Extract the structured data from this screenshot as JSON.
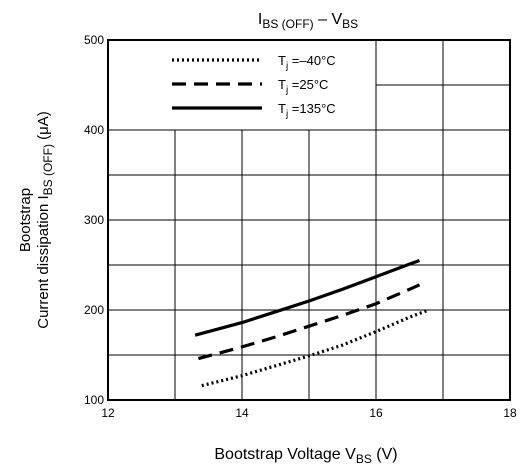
{
  "chart_data": {
    "type": "line",
    "title": {
      "main": "I",
      "sub": "BS (OFF)",
      "dash": " – ",
      "main2": "V",
      "sub2": "BS"
    },
    "xlabel": {
      "text": "Bootstrap Voltage",
      "sym": "V",
      "sub": "BS",
      "unit": "(V)"
    },
    "ylabel": {
      "line1": "Bootstrap",
      "line2_text": "Current dissipation",
      "line2_sym": "I",
      "line2_sub": "BS (OFF)",
      "unit": "(μA)"
    },
    "xlim": [
      12,
      18
    ],
    "ylim": [
      100,
      500
    ],
    "x_ticks": [
      "12",
      "14",
      "16",
      "18"
    ],
    "y_ticks": [
      "100",
      "200",
      "300",
      "400",
      "500"
    ],
    "x_major_step": 2,
    "x_minor_step": 1,
    "y_minor_step": 50,
    "grid": true,
    "legend_position": "top-left inside plot",
    "series": [
      {
        "name": "T",
        "sub": "j",
        "suffix": " =–40°C",
        "style": "dotted",
        "x": [
          13.4,
          14.0,
          14.5,
          15.0,
          15.5,
          16.0,
          16.5,
          16.75
        ],
        "y": [
          116,
          127,
          138,
          149,
          161,
          176,
          192,
          199
        ]
      },
      {
        "name": "T",
        "sub": "j",
        "suffix": " =25°C",
        "style": "dashed",
        "x": [
          13.35,
          14.0,
          14.5,
          15.0,
          15.5,
          16.0,
          16.5,
          16.65
        ],
        "y": [
          146,
          159,
          170,
          182,
          194,
          207,
          223,
          228
        ]
      },
      {
        "name": "T",
        "sub": "j",
        "suffix": " =135°C",
        "style": "solid",
        "x": [
          13.3,
          14.0,
          14.5,
          15.0,
          15.5,
          16.0,
          16.5,
          16.65
        ],
        "y": [
          172,
          186,
          198,
          210,
          223,
          237,
          251,
          255
        ]
      }
    ]
  }
}
